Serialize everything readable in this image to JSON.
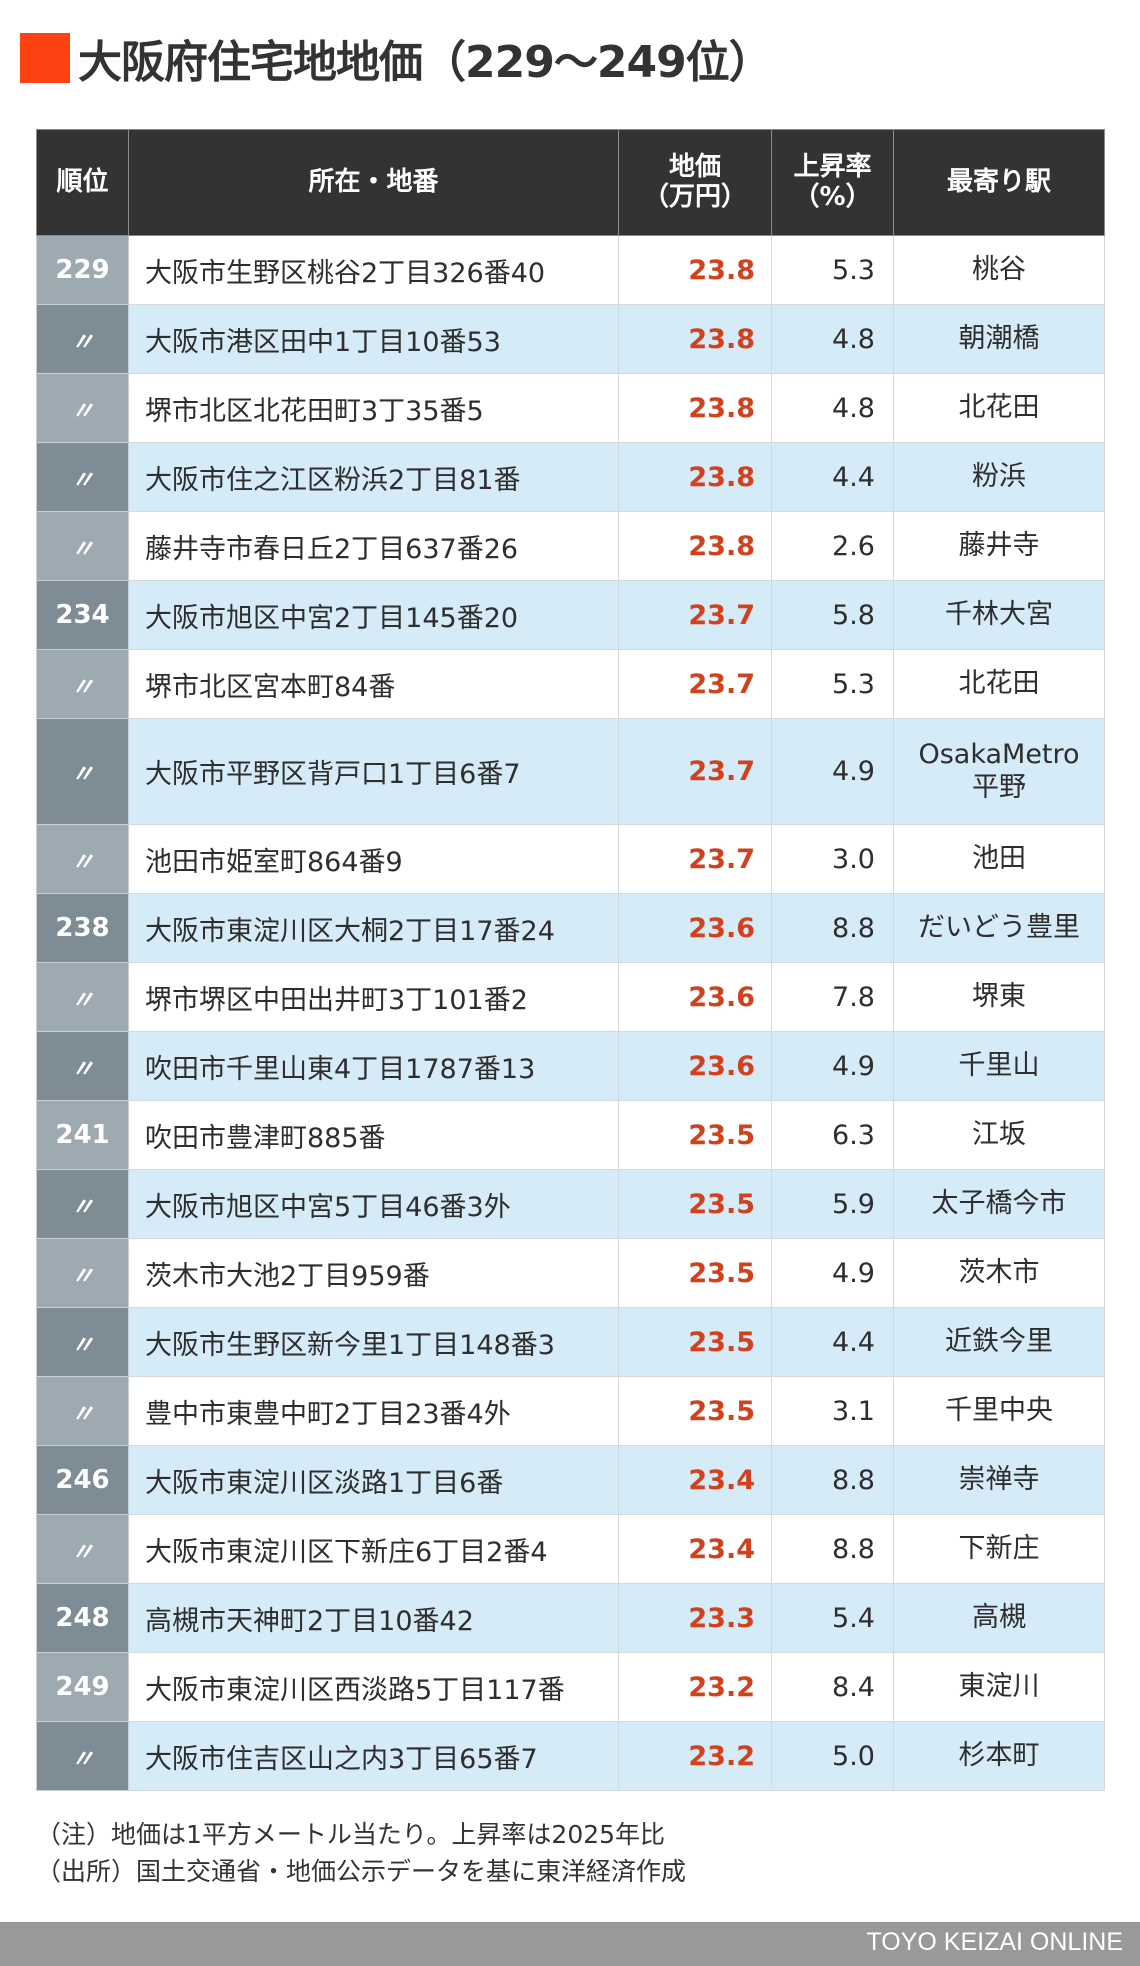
{
  "title": "大阪府住宅地地価（229〜249位）",
  "colors": {
    "accent": "#ff4212",
    "header_bg": "#333333",
    "price_text": "#d2401c",
    "row_alt_bg": "#d5ebf7",
    "rank_light": "#9eaab2",
    "rank_dark": "#7e8c95",
    "footer_bg": "#999999"
  },
  "table": {
    "headers": {
      "rank": "順位",
      "address": "所在・地番",
      "price_line1": "地価",
      "price_line2": "（万円）",
      "rate_line1": "上昇率",
      "rate_line2": "（%）",
      "station": "最寄り駅"
    },
    "rows": [
      {
        "rank": "229",
        "address": "大阪市生野区桃谷2丁目326番40",
        "price": "23.8",
        "rate": "5.3",
        "station": "桃谷"
      },
      {
        "rank": "〃",
        "address": "大阪市港区田中1丁目10番53",
        "price": "23.8",
        "rate": "4.8",
        "station": "朝潮橋"
      },
      {
        "rank": "〃",
        "address": "堺市北区北花田町3丁35番5",
        "price": "23.8",
        "rate": "4.8",
        "station": "北花田"
      },
      {
        "rank": "〃",
        "address": "大阪市住之江区粉浜2丁目81番",
        "price": "23.8",
        "rate": "4.4",
        "station": "粉浜"
      },
      {
        "rank": "〃",
        "address": "藤井寺市春日丘2丁目637番26",
        "price": "23.8",
        "rate": "2.6",
        "station": "藤井寺"
      },
      {
        "rank": "234",
        "address": "大阪市旭区中宮2丁目145番20",
        "price": "23.7",
        "rate": "5.8",
        "station": "千林大宮"
      },
      {
        "rank": "〃",
        "address": "堺市北区宮本町84番",
        "price": "23.7",
        "rate": "5.3",
        "station": "北花田"
      },
      {
        "rank": "〃",
        "address": "大阪市平野区背戸口1丁目6番7",
        "price": "23.7",
        "rate": "4.9",
        "station": "OsakaMetro",
        "station_line2": "平野"
      },
      {
        "rank": "〃",
        "address": "池田市姫室町864番9",
        "price": "23.7",
        "rate": "3.0",
        "station": "池田"
      },
      {
        "rank": "238",
        "address": "大阪市東淀川区大桐2丁目17番24",
        "price": "23.6",
        "rate": "8.8",
        "station": "だいどう豊里"
      },
      {
        "rank": "〃",
        "address": "堺市堺区中田出井町3丁101番2",
        "price": "23.6",
        "rate": "7.8",
        "station": "堺東"
      },
      {
        "rank": "〃",
        "address": "吹田市千里山東4丁目1787番13",
        "price": "23.6",
        "rate": "4.9",
        "station": "千里山"
      },
      {
        "rank": "241",
        "address": "吹田市豊津町885番",
        "price": "23.5",
        "rate": "6.3",
        "station": "江坂"
      },
      {
        "rank": "〃",
        "address": "大阪市旭区中宮5丁目46番3外",
        "price": "23.5",
        "rate": "5.9",
        "station": "太子橋今市"
      },
      {
        "rank": "〃",
        "address": "茨木市大池2丁目959番",
        "price": "23.5",
        "rate": "4.9",
        "station": "茨木市"
      },
      {
        "rank": "〃",
        "address": "大阪市生野区新今里1丁目148番3",
        "price": "23.5",
        "rate": "4.4",
        "station": "近鉄今里"
      },
      {
        "rank": "〃",
        "address": "豊中市東豊中町2丁目23番4外",
        "price": "23.5",
        "rate": "3.1",
        "station": "千里中央"
      },
      {
        "rank": "246",
        "address": "大阪市東淀川区淡路1丁目6番",
        "price": "23.4",
        "rate": "8.8",
        "station": "崇禅寺"
      },
      {
        "rank": "〃",
        "address": "大阪市東淀川区下新庄6丁目2番4",
        "price": "23.4",
        "rate": "8.8",
        "station": "下新庄"
      },
      {
        "rank": "248",
        "address": "高槻市天神町2丁目10番42",
        "price": "23.3",
        "rate": "5.4",
        "station": "高槻"
      },
      {
        "rank": "249",
        "address": "大阪市東淀川区西淡路5丁目117番",
        "price": "23.2",
        "rate": "8.4",
        "station": "東淀川"
      },
      {
        "rank": "〃",
        "address": "大阪市住吉区山之内3丁目65番7",
        "price": "23.2",
        "rate": "5.0",
        "station": "杉本町"
      }
    ]
  },
  "notes": {
    "note": "（注）地価は1平方メートル当たり。上昇率は2025年比",
    "source": "（出所）国土交通省・地価公示データを基に東洋経済作成"
  },
  "footer": {
    "brand": "TOYO KEIZAI ONLINE"
  },
  "chart_data": {
    "type": "table",
    "title": "大阪府住宅地地価（229〜249位）",
    "columns": [
      "順位",
      "所在・地番",
      "地価（万円）",
      "上昇率（%）",
      "最寄り駅"
    ],
    "rows": [
      [
        "229",
        "大阪市生野区桃谷2丁目326番40",
        23.8,
        5.3,
        "桃谷"
      ],
      [
        "〃",
        "大阪市港区田中1丁目10番53",
        23.8,
        4.8,
        "朝潮橋"
      ],
      [
        "〃",
        "堺市北区北花田町3丁35番5",
        23.8,
        4.8,
        "北花田"
      ],
      [
        "〃",
        "大阪市住之江区粉浜2丁目81番",
        23.8,
        4.4,
        "粉浜"
      ],
      [
        "〃",
        "藤井寺市春日丘2丁目637番26",
        23.8,
        2.6,
        "藤井寺"
      ],
      [
        "234",
        "大阪市旭区中宮2丁目145番20",
        23.7,
        5.8,
        "千林大宮"
      ],
      [
        "〃",
        "堺市北区宮本町84番",
        23.7,
        5.3,
        "北花田"
      ],
      [
        "〃",
        "大阪市平野区背戸口1丁目6番7",
        23.7,
        4.9,
        "OsakaMetro平野"
      ],
      [
        "〃",
        "池田市姫室町864番9",
        23.7,
        3.0,
        "池田"
      ],
      [
        "238",
        "大阪市東淀川区大桐2丁目17番24",
        23.6,
        8.8,
        "だいどう豊里"
      ],
      [
        "〃",
        "堺市堺区中田出井町3丁101番2",
        23.6,
        7.8,
        "堺東"
      ],
      [
        "〃",
        "吹田市千里山東4丁目1787番13",
        23.6,
        4.9,
        "千里山"
      ],
      [
        "241",
        "吹田市豊津町885番",
        23.5,
        6.3,
        "江坂"
      ],
      [
        "〃",
        "大阪市旭区中宮5丁目46番3外",
        23.5,
        5.9,
        "太子橋今市"
      ],
      [
        "〃",
        "茨木市大池2丁目959番",
        23.5,
        4.9,
        "茨木市"
      ],
      [
        "〃",
        "大阪市生野区新今里1丁目148番3",
        23.5,
        4.4,
        "近鉄今里"
      ],
      [
        "〃",
        "豊中市東豊中町2丁目23番4外",
        23.5,
        3.1,
        "千里中央"
      ],
      [
        "246",
        "大阪市東淀川区淡路1丁目6番",
        23.4,
        8.8,
        "崇禅寺"
      ],
      [
        "〃",
        "大阪市東淀川区下新庄6丁目2番4",
        23.4,
        8.8,
        "下新庄"
      ],
      [
        "248",
        "高槻市天神町2丁目10番42",
        23.3,
        5.4,
        "高槻"
      ],
      [
        "249",
        "大阪市東淀川区西淡路5丁目117番",
        23.2,
        8.4,
        "東淀川"
      ],
      [
        "〃",
        "大阪市住吉区山之内3丁目65番7",
        23.2,
        5.0,
        "杉本町"
      ]
    ],
    "notes": [
      "（注）地価は1平方メートル当たり。上昇率は2025年比",
      "（出所）国土交通省・地価公示データを基に東洋経済作成"
    ]
  }
}
